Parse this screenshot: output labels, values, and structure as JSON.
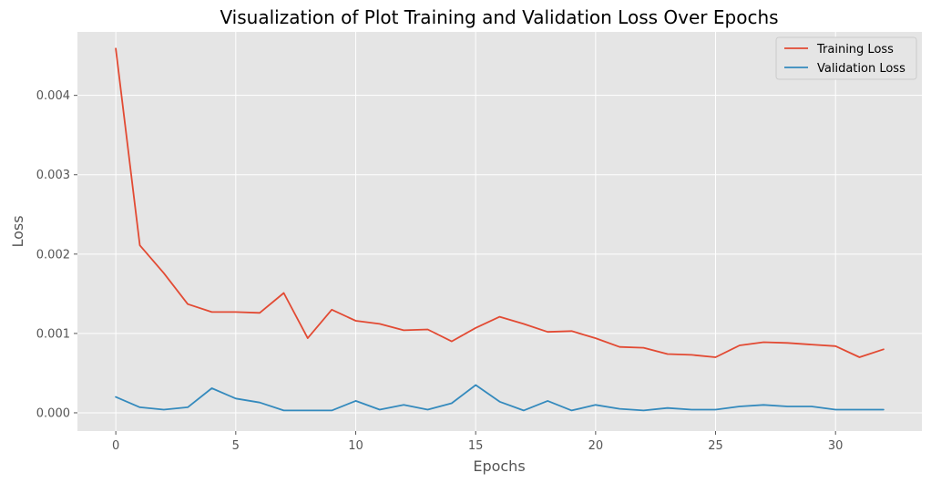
{
  "chart_data": {
    "type": "line",
    "title": "Visualization of Plot Training and Validation Loss Over Epochs",
    "xlabel": "Epochs",
    "ylabel": "Loss",
    "xlim": [
      -1.6,
      33.6
    ],
    "ylim": [
      -0.00023,
      0.0048
    ],
    "xticks": [
      0,
      5,
      10,
      15,
      20,
      25,
      30
    ],
    "xtick_labels": [
      "0",
      "5",
      "10",
      "15",
      "20",
      "25",
      "30"
    ],
    "yticks": [
      0.0,
      0.001,
      0.002,
      0.003,
      0.004
    ],
    "ytick_labels": [
      "0.000",
      "0.001",
      "0.002",
      "0.003",
      "0.004"
    ],
    "grid": true,
    "legend_position": "top-right",
    "x": [
      0,
      1,
      2,
      3,
      4,
      5,
      6,
      7,
      8,
      9,
      10,
      11,
      12,
      13,
      14,
      15,
      16,
      17,
      18,
      19,
      20,
      21,
      22,
      23,
      24,
      25,
      26,
      27,
      28,
      29,
      30,
      31,
      32
    ],
    "series": [
      {
        "name": "Training Loss",
        "color": "#E24A33",
        "values": [
          0.00459,
          0.00211,
          0.00176,
          0.00137,
          0.00127,
          0.00127,
          0.00126,
          0.00151,
          0.00094,
          0.0013,
          0.00116,
          0.00112,
          0.00104,
          0.00105,
          0.0009,
          0.00107,
          0.00121,
          0.00112,
          0.00102,
          0.00103,
          0.00094,
          0.00083,
          0.00082,
          0.00074,
          0.00073,
          0.0007,
          0.00085,
          0.00089,
          0.00088,
          0.00086,
          0.00084,
          0.0007,
          0.0008
        ]
      },
      {
        "name": "Validation Loss",
        "color": "#348ABD",
        "values": [
          0.0002,
          7e-05,
          4e-05,
          7e-05,
          0.00031,
          0.00018,
          0.00013,
          3e-05,
          3e-05,
          3e-05,
          0.00015,
          4e-05,
          0.0001,
          4e-05,
          0.00012,
          0.00035,
          0.00014,
          3e-05,
          0.00015,
          3e-05,
          0.0001,
          5e-05,
          3e-05,
          6e-05,
          4e-05,
          4e-05,
          8e-05,
          0.0001,
          8e-05,
          8e-05,
          4e-05,
          4e-05,
          4e-05
        ]
      }
    ]
  }
}
